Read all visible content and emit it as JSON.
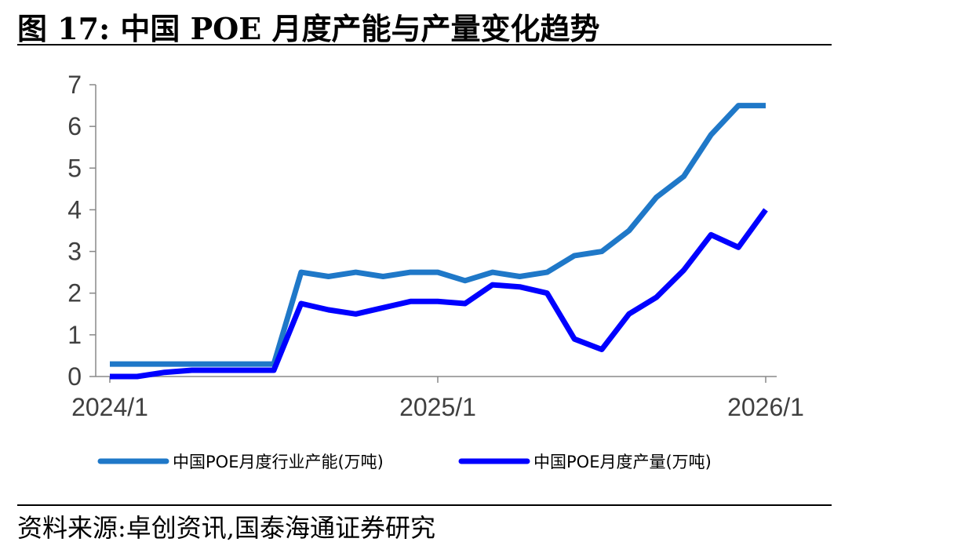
{
  "figure": {
    "title": "图 17:  中国 POE 月度产能与产量变化趋势",
    "source": "资料来源:卓创资讯,国泰海通证券研究"
  },
  "chart_data": {
    "type": "line",
    "x": [
      "2024/1",
      "2024/2",
      "2024/3",
      "2024/4",
      "2024/5",
      "2024/6",
      "2024/7",
      "2024/8",
      "2024/9",
      "2024/10",
      "2024/11",
      "2024/12",
      "2025/1",
      "2025/2",
      "2025/3",
      "2025/4",
      "2025/5",
      "2025/6",
      "2025/7",
      "2025/8",
      "2025/9",
      "2025/10",
      "2025/11",
      "2025/12",
      "2026/1"
    ],
    "x_tick_labels": [
      "2024/1",
      "2025/1",
      "2026/1"
    ],
    "y_tick_labels": [
      "0",
      "1",
      "2",
      "3",
      "4",
      "5",
      "6",
      "7"
    ],
    "ylim": [
      0,
      7
    ],
    "grid": false,
    "legend_position": "bottom",
    "series": [
      {
        "name": "中国POE月度行业产能(万吨)",
        "color": "#1F78C8",
        "values": [
          0.3,
          0.3,
          0.3,
          0.3,
          0.3,
          0.3,
          0.3,
          2.5,
          2.4,
          2.5,
          2.4,
          2.5,
          2.5,
          2.3,
          2.5,
          2.4,
          2.5,
          2.9,
          3.0,
          3.5,
          4.3,
          4.8,
          5.8,
          6.5,
          6.5
        ]
      },
      {
        "name": "中国POE月度产量(万吨)",
        "color": "#0000FF",
        "values": [
          0,
          0,
          0.1,
          0.15,
          0.15,
          0.15,
          0.15,
          1.75,
          1.6,
          1.5,
          1.65,
          1.8,
          1.8,
          1.75,
          2.2,
          2.15,
          2.0,
          0.9,
          0.65,
          1.5,
          1.9,
          2.55,
          3.4,
          3.1,
          4.0
        ]
      }
    ]
  }
}
